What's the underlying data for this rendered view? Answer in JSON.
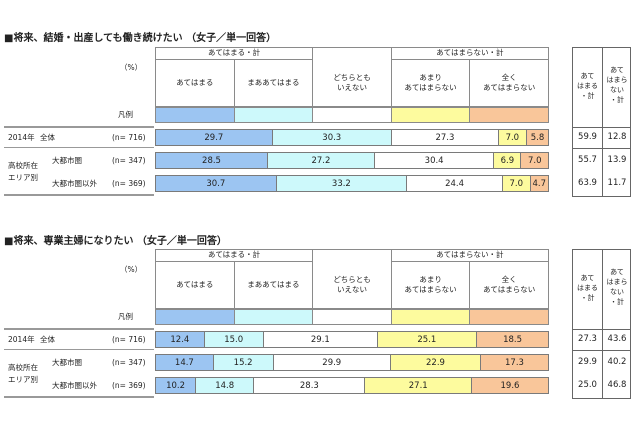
{
  "chart_data": [
    {
      "type": "bar",
      "stacked": "horizontal-100%",
      "title": "■将来、結婚・出産しても働き続けたい （女子／単一回答）",
      "unit_label": "（%）",
      "legend_label": "凡例",
      "group_headers": [
        "あてはまる・計",
        "あてはまらない・計"
      ],
      "categories": [
        "あてはまる",
        "まああてはまる",
        "どちらとも\nいえない",
        "あまり\nあてはまらない",
        "全く\nあてはまらない"
      ],
      "colors": [
        "#9cc5f2",
        "#cdf9fb",
        "#ffffff",
        "#fdfb9e",
        "#f9c69a"
      ],
      "rows": [
        {
          "group": "2014年",
          "label": "全体",
          "n": "(n= 716)",
          "values": [
            29.7,
            30.3,
            27.3,
            7.0,
            5.8
          ],
          "total_yes": "59.9",
          "total_no": "12.8"
        },
        {
          "group": "高校所在\nエリア別",
          "label": "大都市圏",
          "n": "(n= 347)",
          "values": [
            28.5,
            27.2,
            30.4,
            6.9,
            7.0
          ],
          "total_yes": "55.7",
          "total_no": "13.9"
        },
        {
          "group": "",
          "label": "大都市圏以外",
          "n": "(n= 369)",
          "values": [
            30.7,
            33.2,
            24.4,
            7.0,
            4.7
          ],
          "total_yes": "63.9",
          "total_no": "11.7"
        }
      ],
      "totals_headers": [
        "あて\nはまる\n・計",
        "あて\nはまら\nない\n・計"
      ]
    },
    {
      "type": "bar",
      "stacked": "horizontal-100%",
      "title": "■将来、専業主婦になりたい （女子／単一回答）",
      "unit_label": "（%）",
      "legend_label": "凡例",
      "group_headers": [
        "あてはまる・計",
        "あてはまらない・計"
      ],
      "categories": [
        "あてはまる",
        "まああてはまる",
        "どちらとも\nいえない",
        "あまり\nあてはまらない",
        "全く\nあてはまらない"
      ],
      "colors": [
        "#9cc5f2",
        "#cdf9fb",
        "#ffffff",
        "#fdfb9e",
        "#f9c69a"
      ],
      "rows": [
        {
          "group": "2014年",
          "label": "全体",
          "n": "(n= 716)",
          "values": [
            12.4,
            15.0,
            29.1,
            25.1,
            18.5
          ],
          "total_yes": "27.3",
          "total_no": "43.6"
        },
        {
          "group": "高校所在\nエリア別",
          "label": "大都市圏",
          "n": "(n= 347)",
          "values": [
            14.7,
            15.2,
            29.9,
            22.9,
            17.3
          ],
          "total_yes": "29.9",
          "total_no": "40.2"
        },
        {
          "group": "",
          "label": "大都市圏以外",
          "n": "(n= 369)",
          "values": [
            10.2,
            14.8,
            28.3,
            27.1,
            19.6
          ],
          "total_yes": "25.0",
          "total_no": "46.8"
        }
      ],
      "totals_headers": [
        "あて\nはまる\n・計",
        "あて\nはまら\nない\n・計"
      ]
    }
  ]
}
